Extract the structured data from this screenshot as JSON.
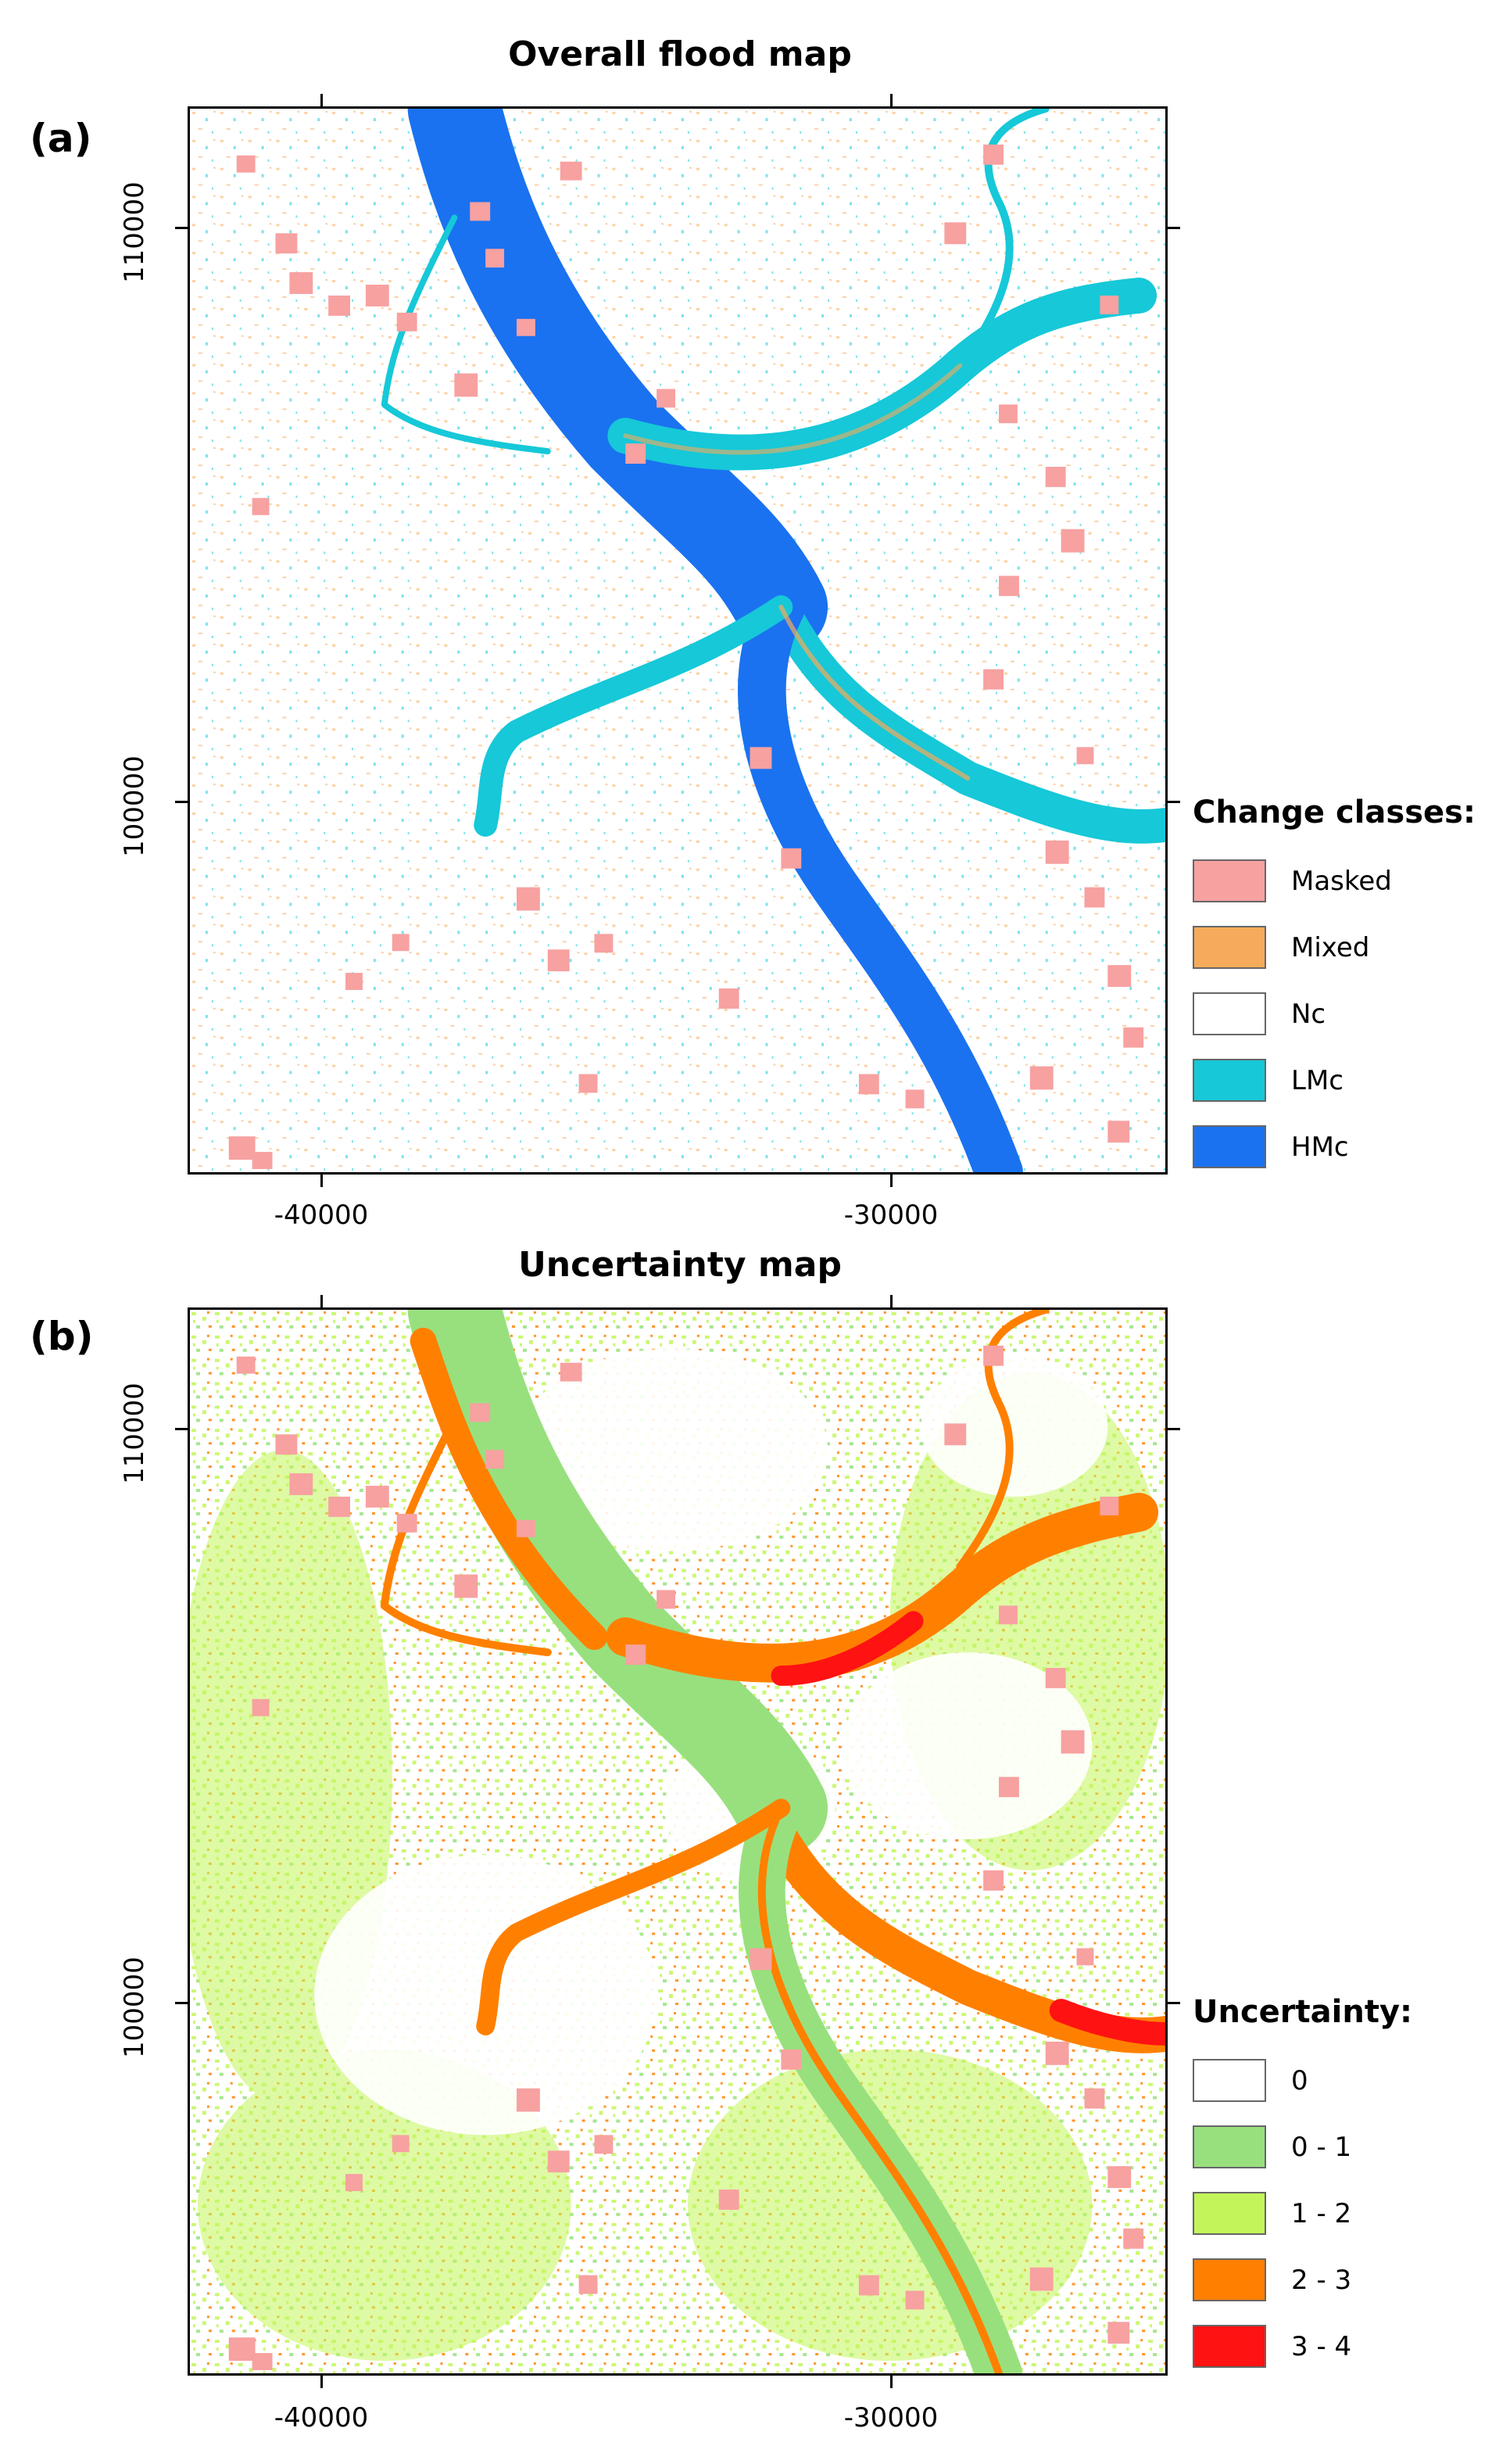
{
  "panels": [
    {
      "label": "(a)",
      "title": "Overall flood map",
      "x_ticks": [
        "-40000",
        "-30000"
      ],
      "y_ticks": [
        "110000",
        "100000"
      ],
      "legend": {
        "title": "Change classes:",
        "items": [
          {
            "label": "Masked",
            "color": "#f7a1a1"
          },
          {
            "label": "Mixed",
            "color": "#f5ab5b"
          },
          {
            "label": "Nc",
            "color": "#ffffff"
          },
          {
            "label": "LMc",
            "color": "#16c8d8"
          },
          {
            "label": "HMc",
            "color": "#1a72f0"
          }
        ]
      }
    },
    {
      "label": "(b)",
      "title": "Uncertainty map",
      "x_ticks": [
        "-40000",
        "-30000"
      ],
      "y_ticks": [
        "110000",
        "100000"
      ],
      "legend": {
        "title": "Uncertainty:",
        "items": [
          {
            "label": "0",
            "color": "#ffffff"
          },
          {
            "label": "0 - 1",
            "color": "#98e07e"
          },
          {
            "label": "1 - 2",
            "color": "#c3f55a"
          },
          {
            "label": "2 - 3",
            "color": "#ff8000"
          },
          {
            "label": "3 - 4",
            "color": "#ff1212"
          }
        ]
      }
    }
  ]
}
